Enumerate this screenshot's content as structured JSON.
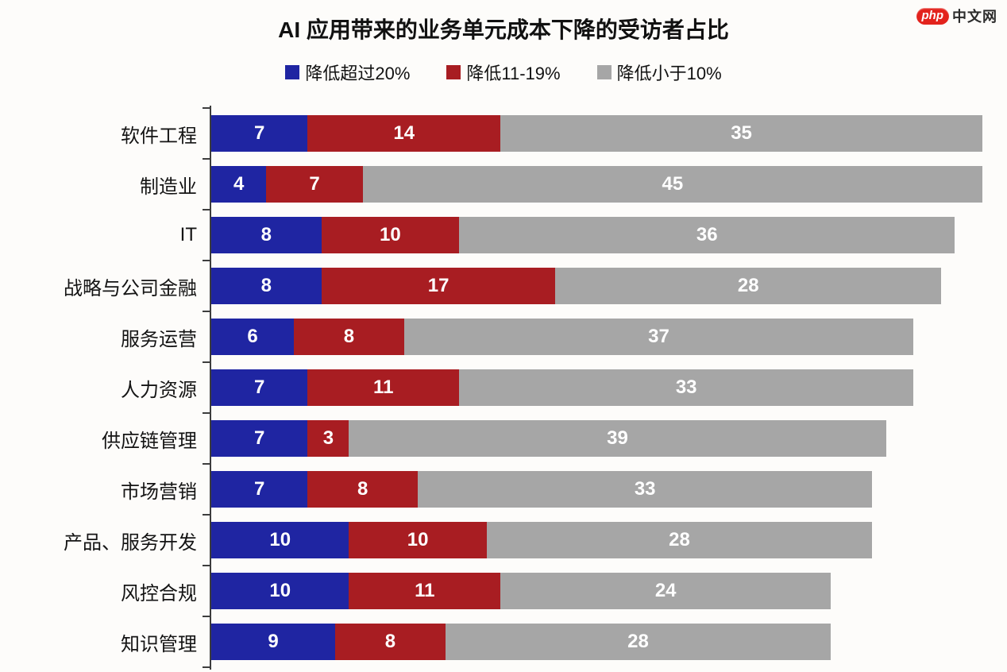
{
  "logo": {
    "badge": "php",
    "badge_color": "#e3231d",
    "text": "中文网"
  },
  "chart_data": {
    "type": "bar",
    "orientation": "horizontal",
    "stacked": true,
    "title": "AI 应用带来的业务单元成本下降的受访者占比",
    "xlabel": "",
    "ylabel": "",
    "xlim": [
      0,
      56
    ],
    "grid": false,
    "legend_position": "top-center",
    "value_labels": "white numbers centered inside each segment",
    "categories": [
      "软件工程",
      "制造业",
      "IT",
      "战略与公司金融",
      "服务运营",
      "人力资源",
      "供应链管理",
      "市场营销",
      "产品、服务开发",
      "风控合规",
      "知识管理"
    ],
    "series": [
      {
        "name": "降低超过20%",
        "color": "#1f25a2",
        "values": [
          7,
          4,
          8,
          8,
          6,
          7,
          7,
          7,
          10,
          10,
          9
        ]
      },
      {
        "name": "降低11-19%",
        "color": "#a81d22",
        "values": [
          14,
          7,
          10,
          17,
          8,
          11,
          3,
          8,
          10,
          11,
          8
        ]
      },
      {
        "name": "降低小于10%",
        "color": "#a6a6a6",
        "values": [
          35,
          45,
          36,
          28,
          37,
          33,
          39,
          33,
          28,
          24,
          28
        ]
      }
    ],
    "colors": {
      "axis": "#3d3d3d",
      "background": "#fdfcfa",
      "title_text": "#111111",
      "bar_value_text": "#ffffff"
    }
  }
}
